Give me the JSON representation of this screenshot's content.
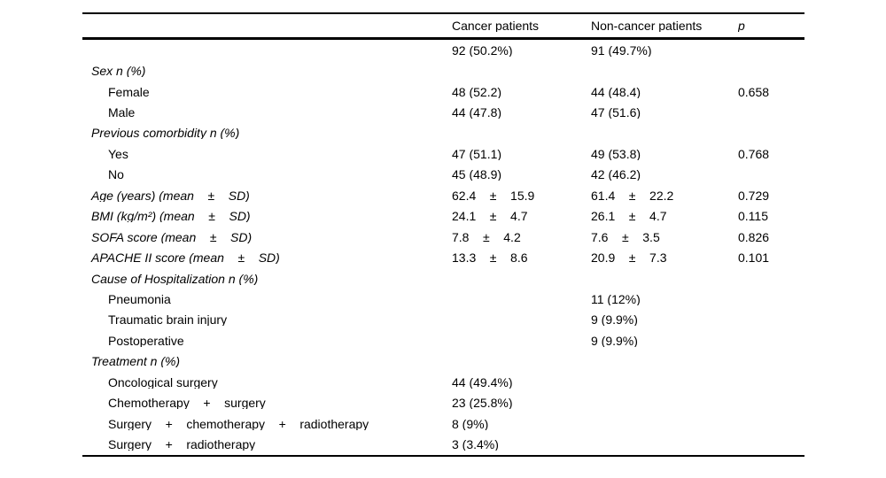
{
  "table": {
    "columns": [
      "",
      "Cancer patients",
      "Non-cancer patients",
      "p"
    ],
    "rows": [
      {
        "label": "",
        "indent": false,
        "italic": false,
        "cancer": "92 (50.2%)",
        "noncancer": "91 (49.7%)",
        "p": ""
      },
      {
        "label": "Sex n (%)",
        "indent": false,
        "italic": true,
        "cancer": "",
        "noncancer": "",
        "p": ""
      },
      {
        "label": "Female",
        "indent": true,
        "italic": false,
        "cancer": "48 (52.2)",
        "noncancer": "44 (48.4)",
        "p": "0.658"
      },
      {
        "label": "Male",
        "indent": true,
        "italic": false,
        "cancer": "44 (47.8)",
        "noncancer": "47 (51.6)",
        "p": ""
      },
      {
        "label": "Previous comorbidity n (%)",
        "indent": false,
        "italic": true,
        "cancer": "",
        "noncancer": "",
        "p": ""
      },
      {
        "label": "Yes",
        "indent": true,
        "italic": false,
        "cancer": "47 (51.1)",
        "noncancer": "49 (53.8)",
        "p": "0.768"
      },
      {
        "label": "No",
        "indent": true,
        "italic": false,
        "cancer": "45 (48.9)",
        "noncancer": "42 (46.2)",
        "p": ""
      },
      {
        "label": "Age (years) (mean    ±    SD)",
        "indent": false,
        "italic": true,
        "cancer": "62.4    ±    15.9",
        "noncancer": "61.4    ±    22.2",
        "p": "0.729"
      },
      {
        "label": "BMI (kg/m²) (mean    ±    SD)",
        "indent": false,
        "italic": true,
        "cancer": "24.1    ±    4.7",
        "noncancer": "26.1    ±    4.7",
        "p": "0.115"
      },
      {
        "label": "SOFA score (mean    ±    SD)",
        "indent": false,
        "italic": true,
        "cancer": "7.8    ±    4.2",
        "noncancer": "7.6    ±    3.5",
        "p": "0.826"
      },
      {
        "label": "APACHE II score (mean    ±    SD)",
        "indent": false,
        "italic": true,
        "cancer": "13.3    ±    8.6",
        "noncancer": "20.9    ±    7.3",
        "p": "0.101"
      },
      {
        "label": "Cause of Hospitalization n (%)",
        "indent": false,
        "italic": true,
        "cancer": "",
        "noncancer": "",
        "p": ""
      },
      {
        "label": "Pneumonia",
        "indent": true,
        "italic": false,
        "cancer": "",
        "noncancer": "11 (12%)",
        "p": ""
      },
      {
        "label": "Traumatic brain injury",
        "indent": true,
        "italic": false,
        "cancer": "",
        "noncancer": "9 (9.9%)",
        "p": ""
      },
      {
        "label": "Postoperative",
        "indent": true,
        "italic": false,
        "cancer": "",
        "noncancer": "9 (9.9%)",
        "p": ""
      },
      {
        "label": "Treatment n (%)",
        "indent": false,
        "italic": true,
        "cancer": "",
        "noncancer": "",
        "p": ""
      },
      {
        "label": "Oncological surgery",
        "indent": true,
        "italic": false,
        "cancer": "44 (49.4%)",
        "noncancer": "",
        "p": ""
      },
      {
        "label": "Chemotherapy    +    surgery",
        "indent": true,
        "italic": false,
        "cancer": "23 (25.8%)",
        "noncancer": "",
        "p": ""
      },
      {
        "label": "Surgery    +    chemotherapy    +    radiotherapy",
        "indent": true,
        "italic": false,
        "cancer": "8 (9%)",
        "noncancer": "",
        "p": ""
      },
      {
        "label": "Surgery    +    radiotherapy",
        "indent": true,
        "italic": false,
        "cancer": "3 (3.4%)",
        "noncancer": "",
        "p": ""
      }
    ]
  }
}
